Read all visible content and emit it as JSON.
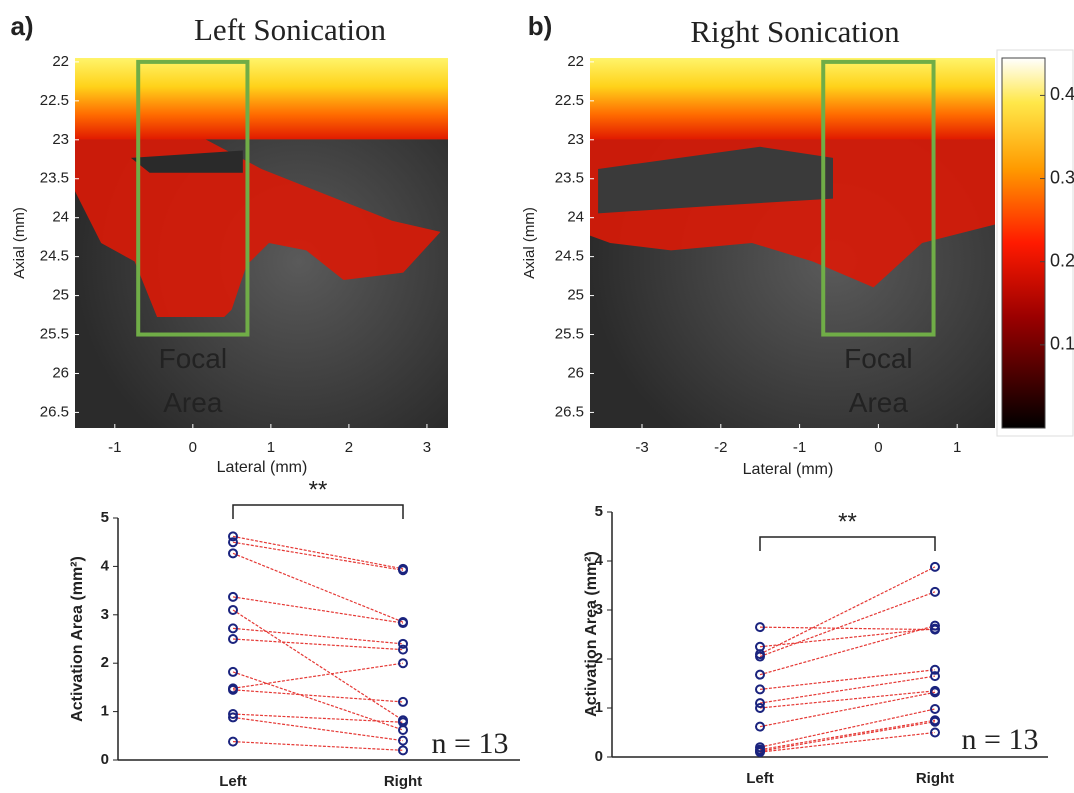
{
  "chart_data": [
    {
      "type": "heatmap",
      "panel_label": "a)",
      "title": "Left Sonication",
      "xlabel": "Lateral (mm)",
      "ylabel": "Axial (mm)",
      "xlim": [
        -1.51,
        3.27
      ],
      "xticks": [
        -1,
        0,
        1,
        2,
        3
      ],
      "ylim": [
        21.95,
        26.7
      ],
      "yticks": [
        22,
        22.5,
        23,
        23.5,
        24,
        24.5,
        25,
        25.5,
        26,
        26.5
      ],
      "focal_box": {
        "x": [
          -0.7,
          0.7
        ],
        "y": [
          22,
          25.5
        ]
      },
      "focal_color": "#70ad47",
      "focal_label": [
        "Focal",
        "Area"
      ]
    },
    {
      "type": "heatmap",
      "panel_label": "b)",
      "title": "Right Sonication",
      "xlabel": "Lateral (mm)",
      "ylabel": "Axial (mm)",
      "xlim": [
        -3.66,
        1.48
      ],
      "xticks": [
        -3,
        -2,
        -1,
        0,
        1
      ],
      "ylim": [
        21.95,
        26.7
      ],
      "yticks": [
        22,
        22.5,
        23,
        23.5,
        24,
        24.5,
        25,
        25.5,
        26,
        26.5
      ],
      "focal_box": {
        "x": [
          -0.7,
          0.7
        ],
        "y": [
          22,
          25.5
        ]
      },
      "focal_color": "#70ad47",
      "focal_label": [
        "Focal",
        "Area"
      ],
      "colorbar": {
        "lim": [
          0,
          0.445
        ],
        "ticks": [
          0.1,
          0.2,
          0.3,
          0.4
        ]
      }
    },
    {
      "type": "paired",
      "categories": [
        "Left",
        "Right"
      ],
      "ylabel": "Activation  Area (mm²)",
      "ylim": [
        0,
        5
      ],
      "yticks": [
        0,
        1,
        2,
        3,
        4,
        5
      ],
      "line_color": "#e53935",
      "marker_color": "#1a237e",
      "significance": "**",
      "n_label": "n = 13",
      "series": [
        {
          "values": [
            4.62,
            3.95
          ]
        },
        {
          "values": [
            4.5,
            3.92
          ]
        },
        {
          "values": [
            4.27,
            2.85
          ]
        },
        {
          "values": [
            3.37,
            2.83
          ]
        },
        {
          "values": [
            3.1,
            0.82
          ]
        },
        {
          "values": [
            2.72,
            2.4
          ]
        },
        {
          "values": [
            2.5,
            2.28
          ]
        },
        {
          "values": [
            1.82,
            0.62
          ]
        },
        {
          "values": [
            1.48,
            2.0
          ]
        },
        {
          "values": [
            1.45,
            1.2
          ]
        },
        {
          "values": [
            0.95,
            0.78
          ]
        },
        {
          "values": [
            0.88,
            0.4
          ]
        },
        {
          "values": [
            0.38,
            0.2
          ]
        }
      ]
    },
    {
      "type": "paired",
      "categories": [
        "Left",
        "Right"
      ],
      "ylabel": "Activation  Area (mm²)",
      "ylim": [
        0,
        5
      ],
      "yticks": [
        0,
        1,
        2,
        3,
        4,
        5
      ],
      "line_color": "#e53935",
      "marker_color": "#1a237e",
      "significance": "**",
      "n_label": "n = 13",
      "series": [
        {
          "values": [
            2.65,
            2.6
          ]
        },
        {
          "values": [
            2.25,
            2.62
          ]
        },
        {
          "values": [
            2.1,
            3.88
          ]
        },
        {
          "values": [
            2.05,
            3.37
          ]
        },
        {
          "values": [
            1.68,
            2.68
          ]
        },
        {
          "values": [
            1.38,
            1.78
          ]
        },
        {
          "values": [
            1.1,
            1.65
          ]
        },
        {
          "values": [
            1.0,
            1.35
          ]
        },
        {
          "values": [
            0.62,
            1.32
          ]
        },
        {
          "values": [
            0.2,
            0.98
          ]
        },
        {
          "values": [
            0.15,
            0.75
          ]
        },
        {
          "values": [
            0.12,
            0.72
          ]
        },
        {
          "values": [
            0.1,
            0.5
          ]
        }
      ]
    }
  ]
}
